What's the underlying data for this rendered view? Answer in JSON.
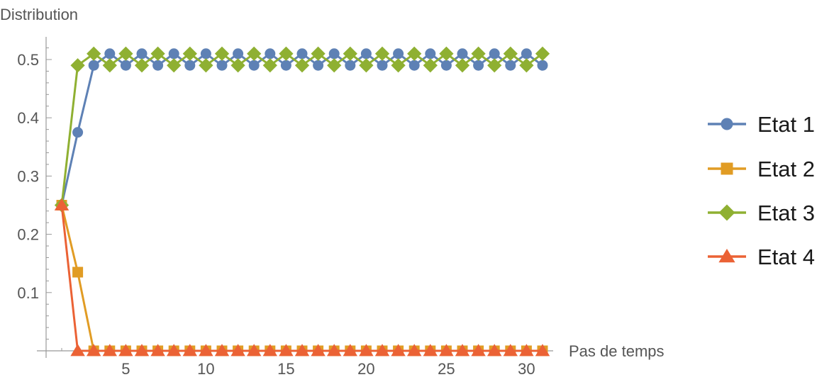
{
  "chart_data": {
    "type": "line",
    "title": "",
    "xlabel": "Pas de temps",
    "ylabel": "Distribution",
    "xlim": [
      0,
      31.5
    ],
    "ylim": [
      0,
      0.5
    ],
    "x_ticks": [
      5,
      10,
      15,
      20,
      25,
      30
    ],
    "x_tick_labels": [
      "5",
      "10",
      "15",
      "20",
      "25",
      "30"
    ],
    "y_ticks": [
      0.1,
      0.2,
      0.3,
      0.4,
      0.5
    ],
    "y_tick_labels": [
      "0.1",
      "0.2",
      "0.3",
      "0.4",
      "0.5"
    ],
    "grid": false,
    "legend_position": "right",
    "x": [
      1,
      2,
      3,
      4,
      5,
      6,
      7,
      8,
      9,
      10,
      11,
      12,
      13,
      14,
      15,
      16,
      17,
      18,
      19,
      20,
      21,
      22,
      23,
      24,
      25,
      26,
      27,
      28,
      29,
      30,
      31
    ],
    "series": [
      {
        "name": "Etat 1",
        "color": "#5e81b5",
        "marker": "circle",
        "values": [
          0.25,
          0.375,
          0.49,
          0.51,
          0.49,
          0.51,
          0.49,
          0.51,
          0.49,
          0.51,
          0.49,
          0.51,
          0.49,
          0.51,
          0.49,
          0.51,
          0.49,
          0.51,
          0.49,
          0.51,
          0.49,
          0.51,
          0.49,
          0.51,
          0.49,
          0.51,
          0.49,
          0.51,
          0.49,
          0.51,
          0.49
        ]
      },
      {
        "name": "Etat 2",
        "color": "#e19c24",
        "marker": "square",
        "values": [
          0.25,
          0.135,
          0,
          0,
          0,
          0,
          0,
          0,
          0,
          0,
          0,
          0,
          0,
          0,
          0,
          0,
          0,
          0,
          0,
          0,
          0,
          0,
          0,
          0,
          0,
          0,
          0,
          0,
          0,
          0,
          0
        ]
      },
      {
        "name": "Etat 3",
        "color": "#8fb032",
        "marker": "diamond",
        "values": [
          0.25,
          0.49,
          0.51,
          0.49,
          0.51,
          0.49,
          0.51,
          0.49,
          0.51,
          0.49,
          0.51,
          0.49,
          0.51,
          0.49,
          0.51,
          0.49,
          0.51,
          0.49,
          0.51,
          0.49,
          0.51,
          0.49,
          0.51,
          0.49,
          0.51,
          0.49,
          0.51,
          0.49,
          0.51,
          0.49,
          0.51
        ]
      },
      {
        "name": "Etat 4",
        "color": "#eb6235",
        "marker": "triangle",
        "values": [
          0.25,
          0,
          0,
          0,
          0,
          0,
          0,
          0,
          0,
          0,
          0,
          0,
          0,
          0,
          0,
          0,
          0,
          0,
          0,
          0,
          0,
          0,
          0,
          0,
          0,
          0,
          0,
          0,
          0,
          0,
          0
        ]
      }
    ]
  }
}
